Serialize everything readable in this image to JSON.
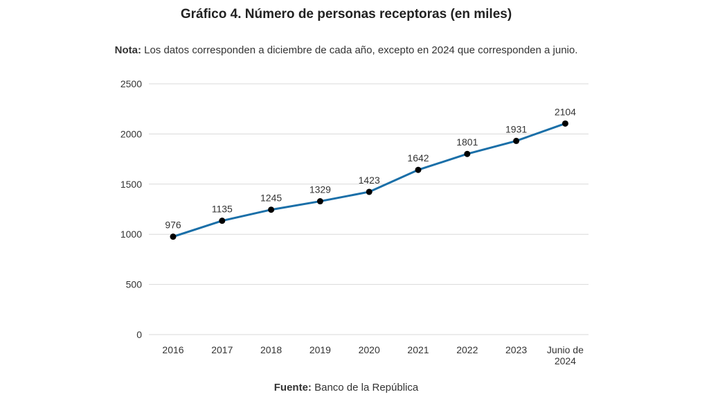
{
  "chart_data": {
    "type": "line",
    "title": "Gráfico 4. Número de personas receptoras (en miles)",
    "note_label": "Nota:",
    "note_text": " Los datos corresponden a diciembre de cada año, excepto en 2024 que corresponden a junio.",
    "source_label": "Fuente:",
    "source_text": " Banco de la República",
    "categories": [
      [
        "2016"
      ],
      [
        "2017"
      ],
      [
        "2018"
      ],
      [
        "2019"
      ],
      [
        "2020"
      ],
      [
        "2021"
      ],
      [
        "2022"
      ],
      [
        "2023"
      ],
      [
        "Junio de",
        "2024"
      ]
    ],
    "series": [
      {
        "values": [
          976,
          1135,
          1245,
          1329,
          1423,
          1642,
          1801,
          1931,
          2104
        ]
      }
    ],
    "ylim": [
      0,
      2500
    ],
    "yticks": [
      0,
      500,
      1000,
      1500,
      2000,
      2500
    ],
    "grid": true,
    "line_color": "#1a6fa8",
    "marker_color": "#000000",
    "grid_color": "#d9d9d9"
  }
}
